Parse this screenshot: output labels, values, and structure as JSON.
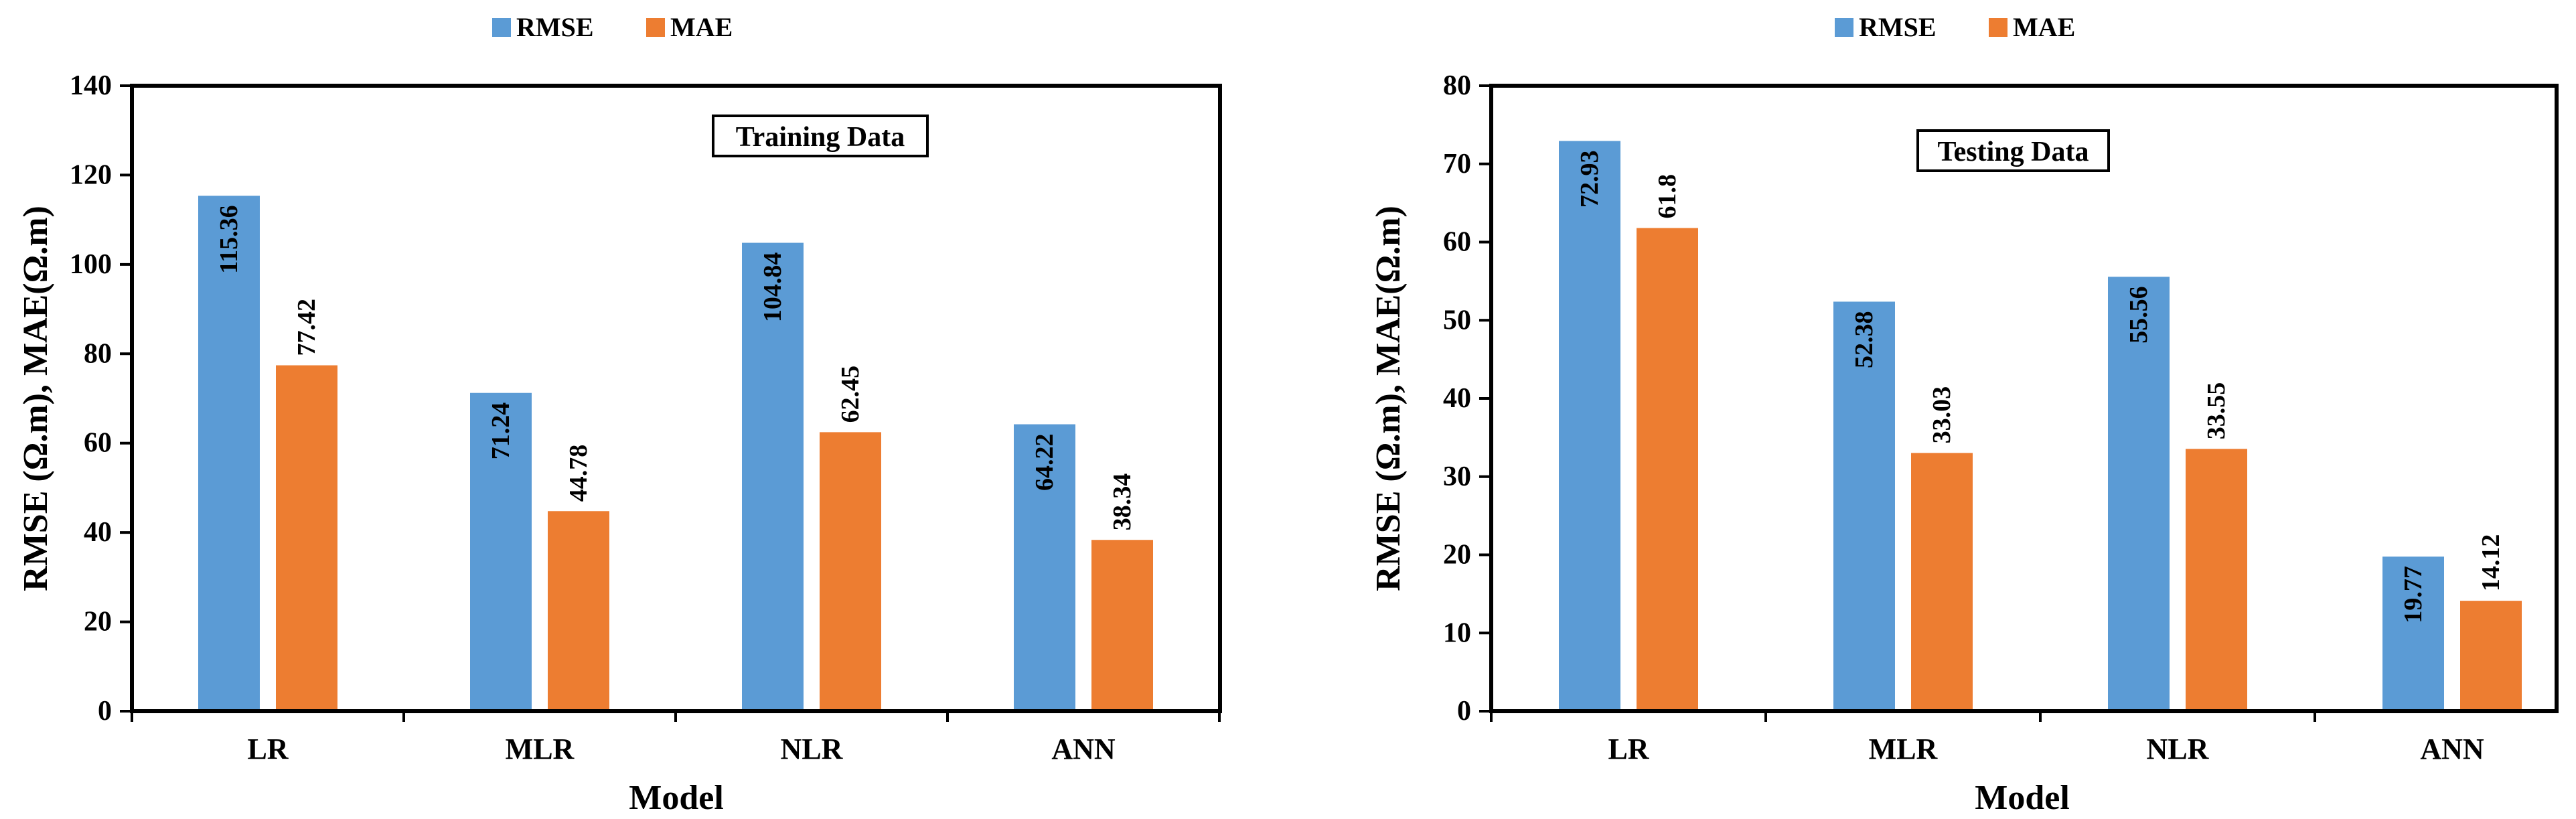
{
  "colors": {
    "rmse": "#5B9BD5",
    "mae": "#ED7D31",
    "axis": "#000000"
  },
  "legend": {
    "rmse_label": "RMSE",
    "mae_label": "MAE"
  },
  "chart_data": [
    {
      "type": "bar",
      "title": "Training Data",
      "categories": [
        "LR",
        "MLR",
        "NLR",
        "ANN"
      ],
      "series": [
        {
          "name": "RMSE",
          "values": [
            115.36,
            71.24,
            104.84,
            64.22
          ],
          "labels": [
            "115.36",
            "71.24",
            "104.84",
            "64.22"
          ],
          "label_position": "inside"
        },
        {
          "name": "MAE",
          "values": [
            77.42,
            44.78,
            62.45,
            38.34
          ],
          "labels": [
            "77.42",
            "44.78",
            "62.45",
            "38.34"
          ],
          "label_position": "above"
        }
      ],
      "xlabel": "Model",
      "ylabel": "RMSE (Ω.m), MAE(Ω.m)",
      "ylim": [
        0,
        140
      ],
      "yticks": [
        "0",
        "20",
        "40",
        "60",
        "80",
        "100",
        "120",
        "140"
      ],
      "grid": false,
      "legend_position": "top"
    },
    {
      "type": "bar",
      "title": "Testing Data",
      "categories": [
        "LR",
        "MLR",
        "NLR",
        "ANN"
      ],
      "series": [
        {
          "name": "RMSE",
          "values": [
            72.93,
            52.38,
            55.56,
            19.77
          ],
          "labels": [
            "72.93",
            "52.38",
            "55.56",
            "19.77"
          ],
          "label_position": "inside"
        },
        {
          "name": "MAE",
          "values": [
            61.8,
            33.03,
            33.55,
            14.12
          ],
          "labels": [
            "61.8",
            "33.03",
            "33.55",
            "14.12"
          ],
          "label_position": "above"
        }
      ],
      "xlabel": "Model",
      "ylabel": "RMSE (Ω.m), MAE(Ω.m)",
      "ylim": [
        0,
        80
      ],
      "yticks": [
        "0",
        "10",
        "20",
        "30",
        "40",
        "50",
        "60",
        "70",
        "80"
      ],
      "grid": false,
      "legend_position": "top"
    }
  ]
}
